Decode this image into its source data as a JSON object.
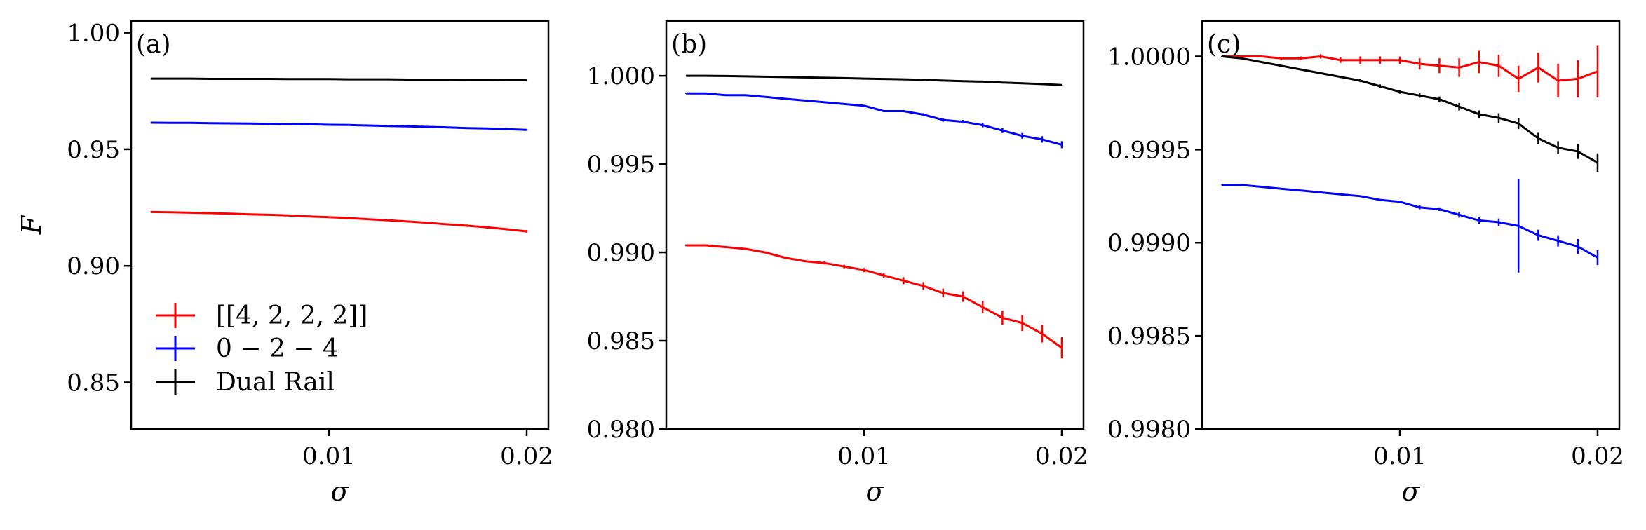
{
  "chart_data": [
    {
      "type": "line",
      "panel_label": "(a)",
      "xlabel": "σ",
      "ylabel": "F",
      "xlim": [
        0.0,
        0.0211
      ],
      "ylim": [
        0.83,
        1.005
      ],
      "xticks": [
        0.01,
        0.02
      ],
      "xtick_labels": [
        "0.01",
        "0.02"
      ],
      "yticks": [
        0.85,
        0.9,
        0.95,
        1.0
      ],
      "ytick_labels": [
        "0.85",
        "0.90",
        "0.95",
        "1.00"
      ],
      "grid": false,
      "legend": {
        "position": "bottom-left",
        "entries": [
          "[[4, 2, 2, 2]]",
          "0 − 2 − 4",
          "Dual Rail"
        ]
      },
      "series": [
        {
          "name": "[[4, 2, 2, 2]]",
          "color": "#ff0000",
          "x": [
            0.001,
            0.002,
            0.003,
            0.004,
            0.005,
            0.006,
            0.007,
            0.008,
            0.009,
            0.01,
            0.011,
            0.012,
            0.013,
            0.014,
            0.015,
            0.016,
            0.017,
            0.018,
            0.019,
            0.02
          ],
          "y": [
            0.9231,
            0.923,
            0.9228,
            0.9226,
            0.9224,
            0.9221,
            0.9219,
            0.9216,
            0.9212,
            0.9209,
            0.9205,
            0.92,
            0.9195,
            0.919,
            0.9185,
            0.9178,
            0.9172,
            0.9165,
            0.9157,
            0.9148
          ],
          "err": [
            0.0002,
            0.0002,
            0.0002,
            0.0002,
            0.0002,
            0.0002,
            0.0002,
            0.0002,
            0.0002,
            0.0003,
            0.0003,
            0.0003,
            0.0003,
            0.0004,
            0.0004,
            0.0004,
            0.0005,
            0.0005,
            0.0005,
            0.0006
          ]
        },
        {
          "name": "0 − 2 − 4",
          "color": "#0000ff",
          "x": [
            0.001,
            0.002,
            0.003,
            0.004,
            0.005,
            0.006,
            0.007,
            0.008,
            0.009,
            0.01,
            0.011,
            0.012,
            0.013,
            0.014,
            0.015,
            0.016,
            0.017,
            0.018,
            0.019,
            0.02
          ],
          "y": [
            0.9614,
            0.9613,
            0.9613,
            0.9612,
            0.9611,
            0.961,
            0.9609,
            0.9608,
            0.9607,
            0.9605,
            0.9604,
            0.9602,
            0.96,
            0.9598,
            0.9596,
            0.9594,
            0.9591,
            0.9589,
            0.9586,
            0.9583
          ],
          "err": [
            0.0001,
            0.0001,
            0.0001,
            0.0001,
            0.0001,
            0.0001,
            0.0001,
            0.0001,
            0.0001,
            0.0002,
            0.0002,
            0.0002,
            0.0002,
            0.0002,
            0.0002,
            0.0002,
            0.0003,
            0.0003,
            0.0003,
            0.0003
          ]
        },
        {
          "name": "Dual Rail",
          "color": "#000000",
          "x": [
            0.001,
            0.002,
            0.003,
            0.004,
            0.005,
            0.006,
            0.007,
            0.008,
            0.009,
            0.01,
            0.011,
            0.012,
            0.013,
            0.014,
            0.015,
            0.016,
            0.017,
            0.018,
            0.019,
            0.02
          ],
          "y": [
            0.9803,
            0.9803,
            0.9803,
            0.9802,
            0.9802,
            0.9802,
            0.9802,
            0.9801,
            0.9801,
            0.9801,
            0.98,
            0.98,
            0.98,
            0.9799,
            0.9799,
            0.9799,
            0.9798,
            0.9798,
            0.9797,
            0.9797
          ],
          "err": [
            0.0001,
            0.0001,
            0.0001,
            0.0001,
            0.0001,
            0.0001,
            0.0001,
            0.0001,
            0.0001,
            0.0001,
            0.0001,
            0.0001,
            0.0001,
            0.0001,
            0.0001,
            0.0001,
            0.0001,
            0.0001,
            0.0001,
            0.0001
          ]
        }
      ]
    },
    {
      "type": "line",
      "panel_label": "(b)",
      "xlabel": "σ",
      "ylabel": "",
      "xlim": [
        0.0,
        0.0211
      ],
      "ylim": [
        0.98,
        1.0031
      ],
      "xticks": [
        0.01,
        0.02
      ],
      "xtick_labels": [
        "0.01",
        "0.02"
      ],
      "yticks": [
        0.98,
        0.985,
        0.99,
        0.995,
        1.0
      ],
      "ytick_labels": [
        "0.980",
        "0.985",
        "0.990",
        "0.995",
        "1.000"
      ],
      "grid": false,
      "series": [
        {
          "name": "[[4, 2, 2, 2]]",
          "color": "#ff0000",
          "x": [
            0.001,
            0.002,
            0.003,
            0.004,
            0.005,
            0.006,
            0.007,
            0.008,
            0.009,
            0.01,
            0.011,
            0.012,
            0.013,
            0.014,
            0.015,
            0.016,
            0.017,
            0.018,
            0.019,
            0.02
          ],
          "y": [
            0.9904,
            0.9904,
            0.9903,
            0.9902,
            0.99,
            0.9897,
            0.9895,
            0.9894,
            0.9892,
            0.989,
            0.9887,
            0.9884,
            0.9881,
            0.9877,
            0.9875,
            0.9869,
            0.9863,
            0.986,
            0.9854,
            0.9846
          ],
          "err": [
            5e-05,
            5e-05,
            5e-05,
            5e-05,
            5e-05,
            5e-05,
            5e-05,
            8e-05,
            0.0001,
            0.00012,
            0.00015,
            0.0002,
            0.00022,
            0.00025,
            0.0003,
            0.00035,
            0.0004,
            0.00045,
            0.0005,
            0.0006
          ]
        },
        {
          "name": "0 − 2 − 4",
          "color": "#0000ff",
          "x": [
            0.001,
            0.002,
            0.003,
            0.004,
            0.005,
            0.006,
            0.007,
            0.008,
            0.009,
            0.01,
            0.011,
            0.012,
            0.013,
            0.014,
            0.015,
            0.016,
            0.017,
            0.018,
            0.019,
            0.02
          ],
          "y": [
            0.999,
            0.999,
            0.9989,
            0.9989,
            0.9988,
            0.9987,
            0.9986,
            0.9985,
            0.9984,
            0.9983,
            0.998,
            0.998,
            0.9978,
            0.9975,
            0.9974,
            0.9972,
            0.9969,
            0.9966,
            0.9964,
            0.9961
          ],
          "err": [
            2e-05,
            2e-05,
            2e-05,
            2e-05,
            2e-05,
            2e-05,
            2e-05,
            2e-05,
            3e-05,
            4e-05,
            5e-05,
            6e-05,
            8e-05,
            0.0001,
            0.0001,
            0.00012,
            0.00014,
            0.00016,
            0.00018,
            0.0002
          ]
        },
        {
          "name": "Dual Rail",
          "color": "#000000",
          "x": [
            0.001,
            0.002,
            0.003,
            0.004,
            0.005,
            0.006,
            0.007,
            0.008,
            0.009,
            0.01,
            0.011,
            0.012,
            0.013,
            0.014,
            0.015,
            0.016,
            0.017,
            0.018,
            0.019,
            0.02
          ],
          "y": [
            1.0,
            1.0,
            0.99999,
            0.99997,
            0.99995,
            0.99993,
            0.99991,
            0.99989,
            0.99987,
            0.99984,
            0.99982,
            0.9998,
            0.99977,
            0.99973,
            0.9997,
            0.99967,
            0.99962,
            0.99958,
            0.99953,
            0.99948
          ],
          "err": [
            1e-05,
            1e-05,
            1e-05,
            1e-05,
            1e-05,
            1e-05,
            1e-05,
            1e-05,
            1e-05,
            1e-05,
            1e-05,
            1e-05,
            1e-05,
            1e-05,
            1e-05,
            1e-05,
            1e-05,
            1e-05,
            1e-05,
            1e-05
          ]
        }
      ]
    },
    {
      "type": "line",
      "panel_label": "(c)",
      "xlabel": "σ",
      "ylabel": "",
      "xlim": [
        0.0,
        0.0211
      ],
      "ylim": [
        0.998,
        1.00019
      ],
      "xticks": [
        0.01,
        0.02
      ],
      "xtick_labels": [
        "0.01",
        "0.02"
      ],
      "yticks": [
        0.998,
        0.9985,
        0.999,
        0.9995,
        1.0
      ],
      "ytick_labels": [
        "0.9980",
        "0.9985",
        "0.9990",
        "0.9995",
        "1.0000"
      ],
      "grid": false,
      "series": [
        {
          "name": "[[4, 2, 2, 2]]",
          "color": "#ff0000",
          "x": [
            0.001,
            0.002,
            0.003,
            0.004,
            0.005,
            0.006,
            0.007,
            0.008,
            0.009,
            0.01,
            0.011,
            0.012,
            0.013,
            0.014,
            0.015,
            0.016,
            0.017,
            0.018,
            0.019,
            0.02
          ],
          "y": [
            1.0,
            1.0,
            1.0,
            0.99999,
            0.99999,
            1.0,
            0.99998,
            0.99998,
            0.99998,
            0.99998,
            0.99996,
            0.99995,
            0.99994,
            0.99997,
            0.99995,
            0.99988,
            0.99994,
            0.99987,
            0.99988,
            0.99992
          ],
          "err": [
            3e-06,
            3e-06,
            5e-06,
            8e-06,
            1e-05,
            1.2e-05,
            1.5e-05,
            2e-05,
            2e-05,
            2e-05,
            3e-05,
            4e-05,
            5e-05,
            6e-05,
            6e-05,
            7e-05,
            8e-05,
            9e-05,
            0.0001,
            0.00014
          ]
        },
        {
          "name": "0 − 2 − 4",
          "color": "#0000ff",
          "x": [
            0.001,
            0.002,
            0.003,
            0.004,
            0.005,
            0.006,
            0.007,
            0.008,
            0.009,
            0.01,
            0.011,
            0.012,
            0.013,
            0.014,
            0.015,
            0.016,
            0.017,
            0.018,
            0.019,
            0.02
          ],
          "y": [
            0.99931,
            0.99931,
            0.9993,
            0.99929,
            0.99928,
            0.99927,
            0.99926,
            0.99925,
            0.99923,
            0.99922,
            0.99919,
            0.99918,
            0.99915,
            0.99912,
            0.99911,
            0.99909,
            0.99904,
            0.99901,
            0.99898,
            0.99892
          ],
          "err": [
            2e-06,
            2e-06,
            2e-06,
            2e-06,
            2e-06,
            3e-06,
            3e-06,
            4e-06,
            5e-06,
            6e-06,
            1e-05,
            1e-05,
            1.5e-05,
            2e-05,
            2e-05,
            0.00025,
            3e-05,
            3e-05,
            4e-05,
            4e-05
          ]
        },
        {
          "name": "Dual Rail",
          "color": "#000000",
          "x": [
            0.001,
            0.002,
            0.003,
            0.004,
            0.005,
            0.006,
            0.007,
            0.008,
            0.009,
            0.01,
            0.011,
            0.012,
            0.013,
            0.014,
            0.015,
            0.016,
            0.017,
            0.018,
            0.019,
            0.02
          ],
          "y": [
            1.0,
            0.99999,
            0.99997,
            0.99995,
            0.99993,
            0.99991,
            0.99989,
            0.99987,
            0.99984,
            0.99981,
            0.99979,
            0.99977,
            0.99973,
            0.99969,
            0.99967,
            0.99964,
            0.99956,
            0.99951,
            0.99949,
            0.99943
          ],
          "err": [
            2e-06,
            2e-06,
            3e-06,
            3e-06,
            4e-06,
            5e-06,
            6e-06,
            8e-06,
            1e-05,
            1e-05,
            1.2e-05,
            1.5e-05,
            2e-05,
            2e-05,
            2.5e-05,
            3e-05,
            3e-05,
            3.5e-05,
            4e-05,
            5e-05
          ]
        }
      ]
    }
  ]
}
